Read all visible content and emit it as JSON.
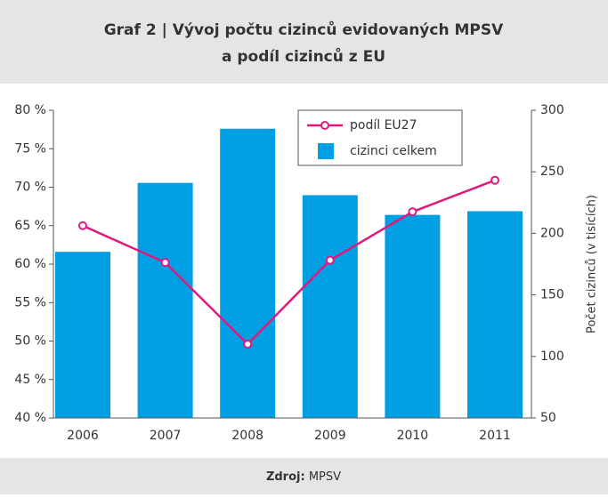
{
  "chart_data": {
    "type": "bar-line",
    "title": [
      "Graf 2 | Vývoj počtu cizinců evidovaných MPSV",
      "a podíl cizinců z EU"
    ],
    "categories": [
      "2006",
      "2007",
      "2008",
      "2009",
      "2010",
      "2011"
    ],
    "series": [
      {
        "name": "podíl EU27",
        "type": "line",
        "color": "#e0197d",
        "axis": "y",
        "values": [
          65.0,
          60.2,
          49.6,
          60.5,
          66.8,
          70.9
        ]
      },
      {
        "name": "cizinci celkem",
        "type": "bar",
        "color": "#009fe3",
        "axis": "y2",
        "values": [
          185,
          241,
          285,
          231,
          215,
          218
        ]
      }
    ],
    "ylim": [
      40,
      80
    ],
    "yticks": [
      {
        "value": 40,
        "label": "40 %"
      },
      {
        "value": 45,
        "label": "45 %"
      },
      {
        "value": 50,
        "label": "50 %"
      },
      {
        "value": 55,
        "label": "55 %"
      },
      {
        "value": 60,
        "label": "60 %"
      },
      {
        "value": 65,
        "label": "65 %"
      },
      {
        "value": 70,
        "label": "70 %"
      },
      {
        "value": 75,
        "label": "75 %"
      },
      {
        "value": 80,
        "label": "80 %"
      }
    ],
    "y2lim": [
      50,
      300
    ],
    "y2ticks": [
      50,
      100,
      150,
      200,
      250,
      300
    ],
    "y2label": "Počet cizinců (v tisících)",
    "source": {
      "label": "Zdroj:",
      "value": "MPSV"
    }
  }
}
